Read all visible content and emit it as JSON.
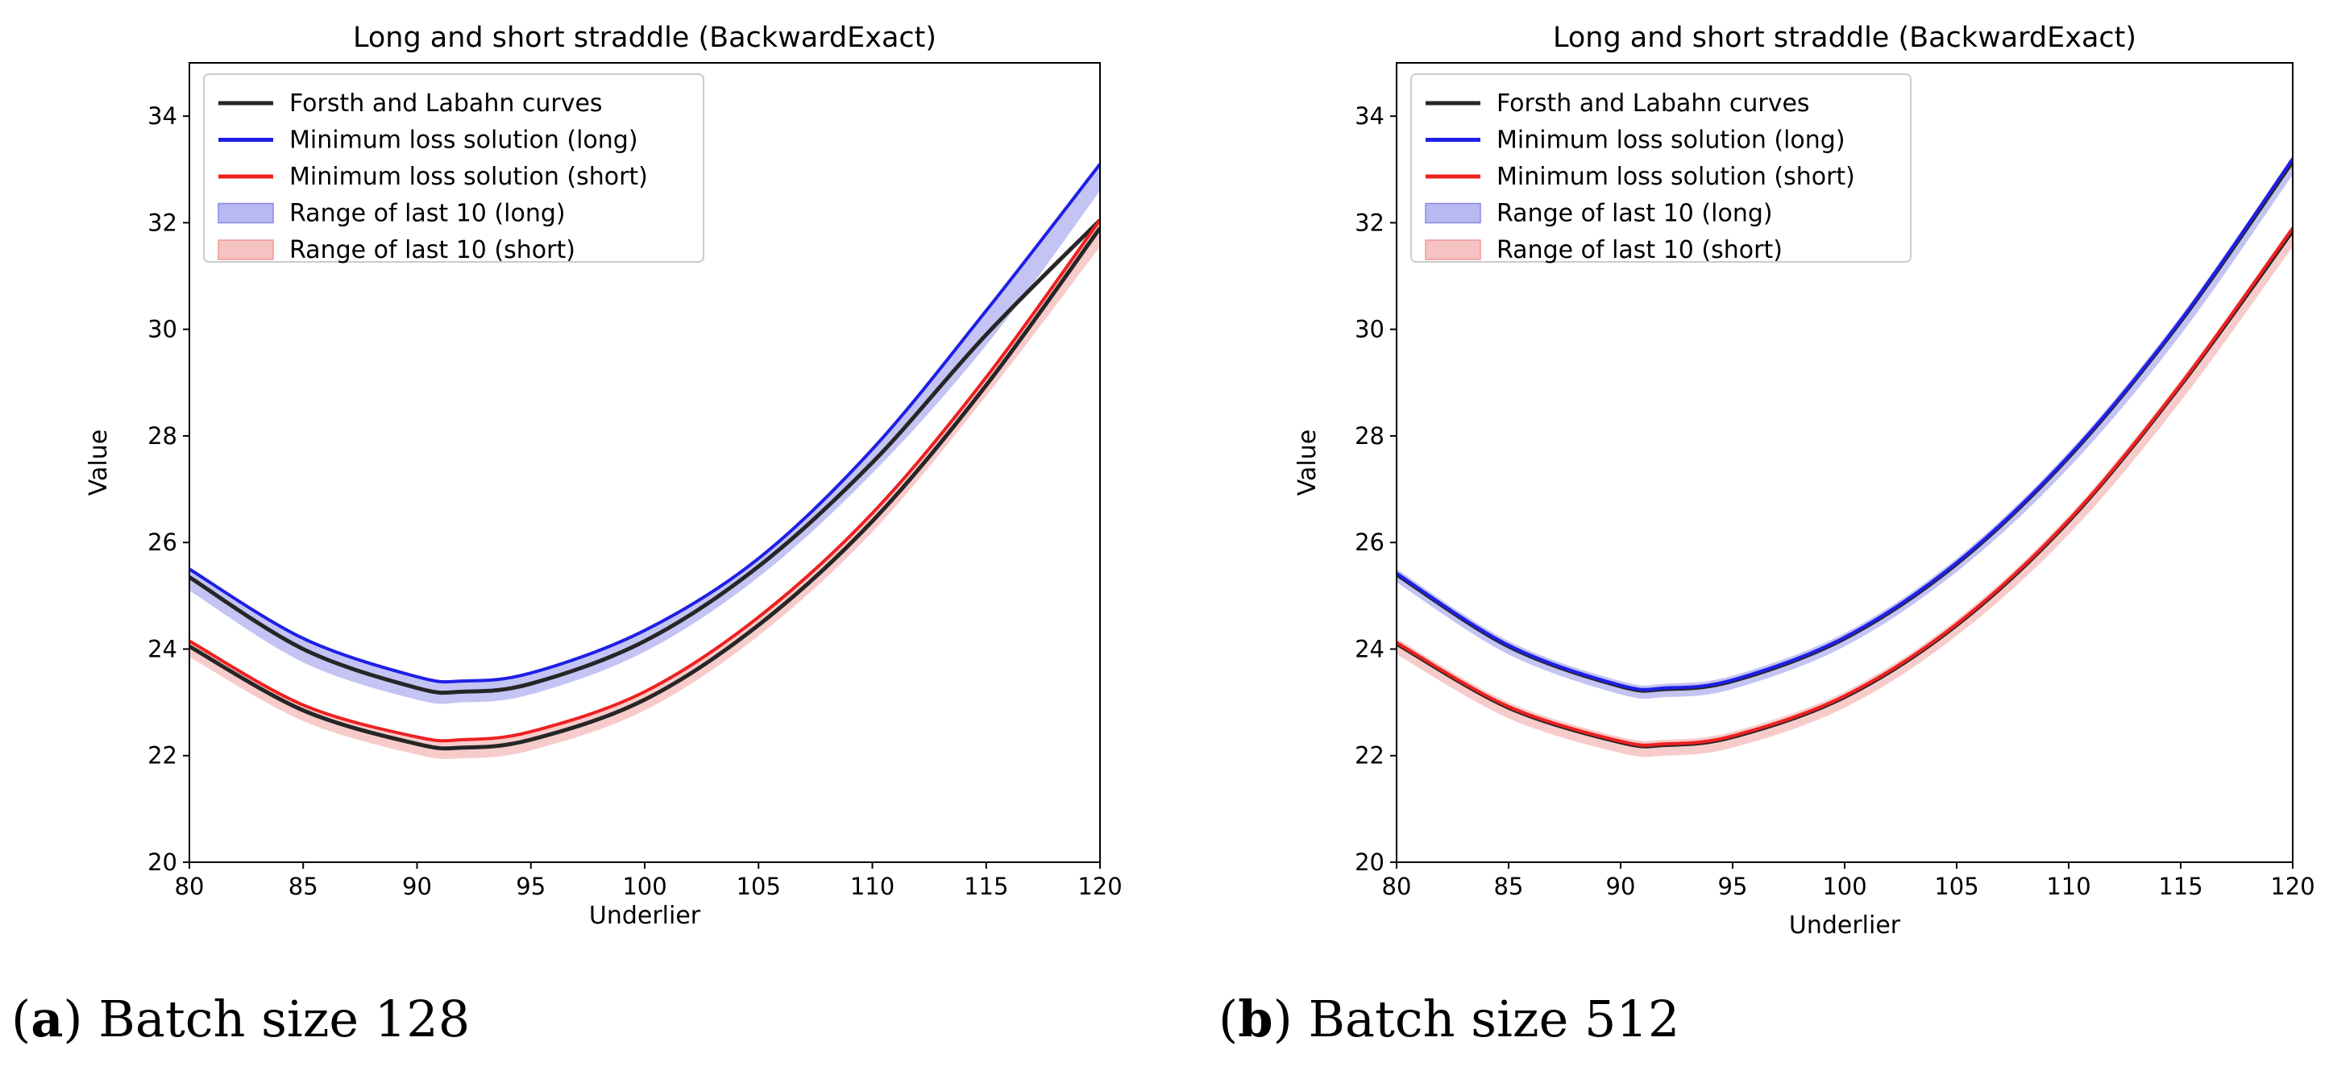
{
  "captions": [
    {
      "letter": "a",
      "text": "Batch size 128"
    },
    {
      "letter": "b",
      "text": "Batch size 512"
    }
  ],
  "colors": {
    "reference": "#262626",
    "long": "#1f1fe6",
    "short": "#ee2020",
    "long_band": "#b8b8f2",
    "short_band": "#f7c2c2"
  },
  "chart_data": [
    {
      "type": "line",
      "title": "Long and short straddle (BackwardExact)",
      "xlabel": "Underlier",
      "ylabel": "Value",
      "xlim": [
        80,
        120
      ],
      "ylim": [
        20,
        35
      ],
      "xticks": [
        80,
        85,
        90,
        95,
        100,
        105,
        110,
        115,
        120
      ],
      "yticks": [
        20,
        22,
        24,
        26,
        28,
        30,
        32,
        34
      ],
      "legend": [
        "Forsth and Labahn curves",
        "Minimum loss solution (long)",
        "Minimum loss solution (short)",
        "Range of last 10 (long)",
        "Range of last 10 (short)"
      ],
      "legend_position": "upper-left",
      "x": [
        80,
        85,
        90,
        92,
        95,
        100,
        105,
        110,
        115,
        120
      ],
      "series": [
        {
          "name": "Forsth and Labahn curves (long)",
          "kind": "reference",
          "values": [
            25.35,
            24.0,
            23.27,
            23.2,
            23.35,
            24.15,
            25.55,
            27.5,
            29.9,
            32.05
          ]
        },
        {
          "name": "Forsth and Labahn curves (short)",
          "kind": "reference",
          "values": [
            24.05,
            22.85,
            22.22,
            22.15,
            22.3,
            23.05,
            24.45,
            26.4,
            28.95,
            31.9
          ]
        },
        {
          "name": "Minimum loss solution (long)",
          "kind": "long",
          "values": [
            25.5,
            24.2,
            23.48,
            23.4,
            23.55,
            24.35,
            25.7,
            27.75,
            30.35,
            33.1
          ]
        },
        {
          "name": "Minimum loss solution (short)",
          "kind": "short",
          "values": [
            24.15,
            22.95,
            22.35,
            22.3,
            22.45,
            23.2,
            24.6,
            26.55,
            29.1,
            32.05
          ]
        },
        {
          "name": "Range of last 10 (long)",
          "kind": "long_band",
          "lower": [
            25.1,
            23.75,
            23.05,
            23.0,
            23.15,
            23.95,
            25.35,
            27.3,
            29.7,
            32.6
          ],
          "upper": [
            25.5,
            24.2,
            23.48,
            23.4,
            23.55,
            24.35,
            25.7,
            27.75,
            30.35,
            33.1
          ]
        },
        {
          "name": "Range of last 10 (short)",
          "kind": "short_band",
          "lower": [
            23.85,
            22.65,
            22.02,
            21.95,
            22.1,
            22.85,
            24.25,
            26.2,
            28.75,
            31.55
          ],
          "upper": [
            24.15,
            22.95,
            22.35,
            22.3,
            22.45,
            23.2,
            24.6,
            26.55,
            29.1,
            32.05
          ]
        }
      ]
    },
    {
      "type": "line",
      "title": "Long and short straddle (BackwardExact)",
      "xlabel": "Underlier",
      "ylabel": "Value",
      "xlim": [
        80,
        120
      ],
      "ylim": [
        20,
        35
      ],
      "xticks": [
        80,
        85,
        90,
        95,
        100,
        105,
        110,
        115,
        120
      ],
      "yticks": [
        20,
        22,
        24,
        26,
        28,
        30,
        32,
        34
      ],
      "legend": [
        "Forsth and Labahn curves",
        "Minimum loss solution (long)",
        "Minimum loss solution (short)",
        "Range of last 10 (long)",
        "Range of last 10 (short)"
      ],
      "legend_position": "upper-left",
      "x": [
        80,
        85,
        90,
        92,
        95,
        100,
        105,
        110,
        115,
        120
      ],
      "series": [
        {
          "name": "Forsth and Labahn curves (long)",
          "kind": "reference",
          "values": [
            25.4,
            24.05,
            23.3,
            23.25,
            23.4,
            24.2,
            25.6,
            27.6,
            30.15,
            33.15
          ]
        },
        {
          "name": "Forsth and Labahn curves (short)",
          "kind": "reference",
          "values": [
            24.1,
            22.9,
            22.25,
            22.2,
            22.35,
            23.1,
            24.45,
            26.4,
            28.95,
            31.85
          ]
        },
        {
          "name": "Minimum loss solution (long)",
          "kind": "long",
          "values": [
            25.42,
            24.07,
            23.32,
            23.27,
            23.42,
            24.22,
            25.62,
            27.62,
            30.17,
            33.2
          ]
        },
        {
          "name": "Minimum loss solution (short)",
          "kind": "short",
          "values": [
            24.12,
            22.92,
            22.27,
            22.22,
            22.37,
            23.12,
            24.47,
            26.42,
            28.97,
            31.9
          ]
        },
        {
          "name": "Range of last 10 (long)",
          "kind": "long_band",
          "lower": [
            25.25,
            23.9,
            23.15,
            23.1,
            23.25,
            24.05,
            25.45,
            27.4,
            29.9,
            32.9
          ],
          "upper": [
            25.5,
            24.15,
            23.4,
            23.35,
            23.5,
            24.3,
            25.7,
            27.7,
            30.25,
            33.25
          ]
        },
        {
          "name": "Range of last 10 (short)",
          "kind": "short_band",
          "lower": [
            23.9,
            22.7,
            22.05,
            22.0,
            22.15,
            22.9,
            24.25,
            26.15,
            28.65,
            31.55
          ],
          "upper": [
            24.2,
            23.0,
            22.35,
            22.3,
            22.45,
            23.2,
            24.55,
            26.5,
            29.05,
            31.95
          ]
        }
      ]
    }
  ]
}
